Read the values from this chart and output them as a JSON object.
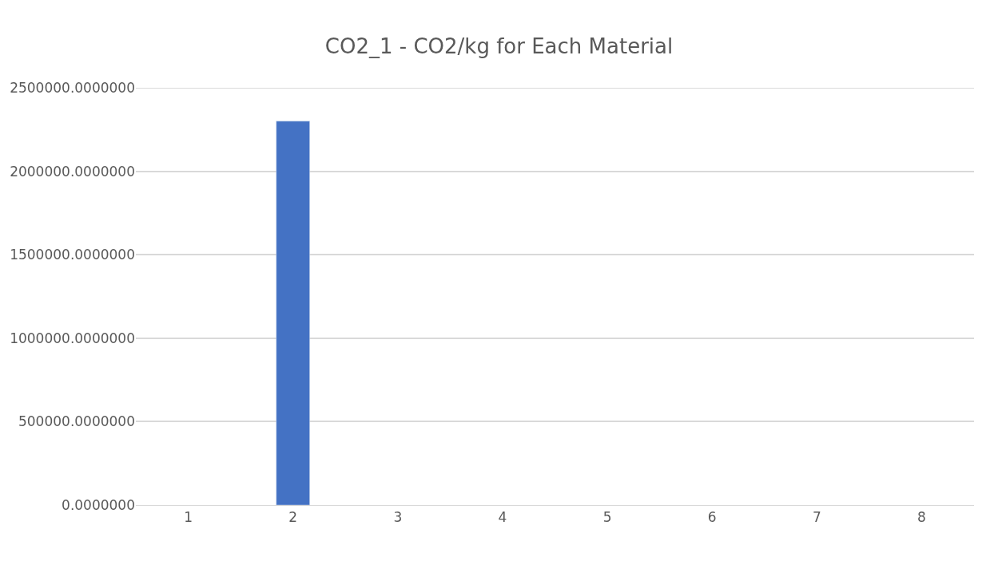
{
  "chart_data": {
    "type": "bar",
    "title": "CO2_1 - CO2/kg for Each Material",
    "categories": [
      "1",
      "2",
      "3",
      "4",
      "5",
      "6",
      "7",
      "8"
    ],
    "values": [
      null,
      2300000,
      null,
      null,
      null,
      null,
      null,
      null
    ],
    "color": "#4472c4",
    "ylim": [
      0,
      2500000
    ],
    "yticks": [
      {
        "value": 0,
        "label": "0.0000000"
      },
      {
        "value": 500000,
        "label": "500000.0000000"
      },
      {
        "value": 1000000,
        "label": "1000000.0000000"
      },
      {
        "value": 1500000,
        "label": "1500000.0000000"
      },
      {
        "value": 2000000,
        "label": "2000000.0000000"
      },
      {
        "value": 2500000,
        "label": "2500000.0000000"
      }
    ],
    "grid": "y",
    "legend": false
  }
}
